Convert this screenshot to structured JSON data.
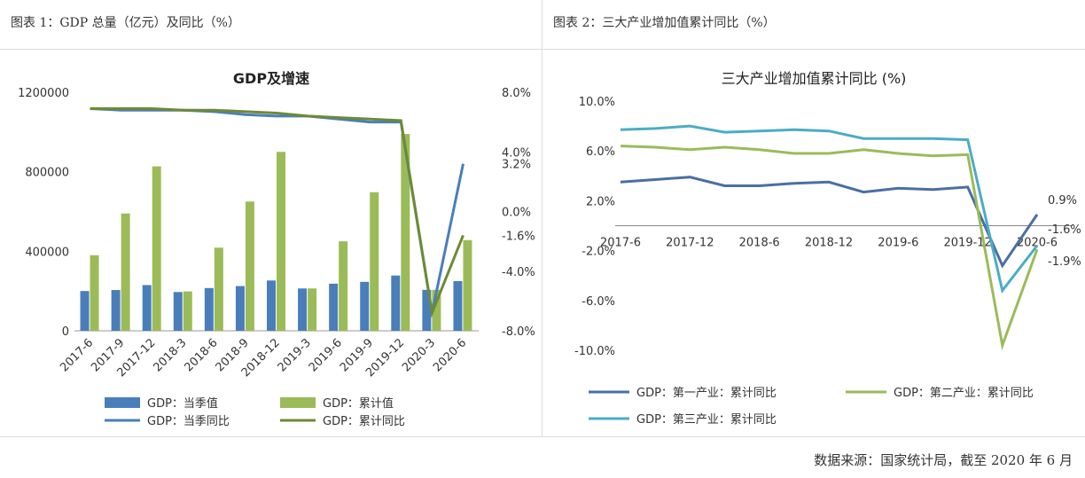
{
  "panels": {
    "left_title": "图表 1：GDP 总量（亿元）及同比（%）",
    "right_title": "图表 2：三大产业增加值累计同比（%）"
  },
  "footer": "数据来源：国家统计局，截至 2020 年 6 月",
  "colors": {
    "bar_quarter": "#4a7ebb",
    "bar_cumulative": "#9bbb59",
    "line_quarter_yoy": "#4a7ebb",
    "line_cumulative_yoy": "#6d8a35",
    "primary": "#4a6fa5",
    "secondary": "#9bbb59",
    "tertiary": "#4bacc6"
  },
  "chart_data": [
    {
      "type": "bar",
      "title": "GDP及增速",
      "categories": [
        "2017-6",
        "2017-9",
        "2017-12",
        "2018-3",
        "2018-6",
        "2018-9",
        "2018-12",
        "2019-3",
        "2019-6",
        "2019-9",
        "2019-12",
        "2020-3",
        "2020-6"
      ],
      "ylim": [
        0,
        1200000
      ],
      "yticks": [
        "1200000",
        "800000",
        "400000",
        "0"
      ],
      "y2lim": [
        -8.0,
        8.0
      ],
      "y2ticks": [
        "8.0%",
        "4.0%",
        "0.0%",
        "-4.0%",
        "-8.0%"
      ],
      "series": [
        {
          "name": "GDP：当季值",
          "kind": "bar",
          "axis": "left",
          "values": [
            200000,
            205000,
            230000,
            195000,
            215000,
            225000,
            253000,
            213000,
            237000,
            246000,
            278000,
            206000,
            250000
          ]
        },
        {
          "name": "GDP：累计值",
          "kind": "bar",
          "axis": "left",
          "values": [
            380000,
            590000,
            827000,
            198000,
            418000,
            650000,
            900000,
            213000,
            450000,
            697000,
            990000,
            206000,
            456000
          ]
        },
        {
          "name": "GDP：当季同比",
          "kind": "line",
          "axis": "right",
          "values": [
            6.9,
            6.8,
            6.8,
            6.8,
            6.7,
            6.5,
            6.4,
            6.4,
            6.2,
            6.0,
            6.0,
            -6.8,
            3.2
          ]
        },
        {
          "name": "GDP：累计同比",
          "kind": "line",
          "axis": "right",
          "values": [
            6.9,
            6.9,
            6.9,
            6.8,
            6.8,
            6.7,
            6.6,
            6.4,
            6.3,
            6.2,
            6.1,
            -6.8,
            -1.6
          ]
        }
      ],
      "annotations": [
        "3.2%",
        "-1.6%"
      ],
      "legend": "bottom"
    },
    {
      "type": "line",
      "title": "三大产业增加值累计同比 (%)",
      "x": [
        "2017-6",
        "2017-9",
        "2017-12",
        "2018-3",
        "2018-6",
        "2018-9",
        "2018-12",
        "2019-3",
        "2019-6",
        "2019-9",
        "2019-12",
        "2020-3",
        "2020-6"
      ],
      "xticks": [
        "2017-6",
        "2017-12",
        "2018-6",
        "2018-12",
        "2019-6",
        "2019-12",
        "2020-6"
      ],
      "ylim": [
        -10.0,
        10.0
      ],
      "yticks": [
        "10.0%",
        "6.0%",
        "2.0%",
        "-2.0%",
        "-6.0%",
        "-10.0%"
      ],
      "series": [
        {
          "name": "GDP：第一产业：累计同比",
          "values": [
            3.5,
            3.7,
            3.9,
            3.2,
            3.2,
            3.4,
            3.5,
            2.7,
            3.0,
            2.9,
            3.1,
            -3.2,
            0.9
          ]
        },
        {
          "name": "GDP：第二产业：累计同比",
          "values": [
            6.4,
            6.3,
            6.1,
            6.3,
            6.1,
            5.8,
            5.8,
            6.1,
            5.8,
            5.6,
            5.7,
            -9.6,
            -1.9
          ]
        },
        {
          "name": "GDP：第三产业：累计同比",
          "values": [
            7.7,
            7.8,
            8.0,
            7.5,
            7.6,
            7.7,
            7.6,
            7.0,
            7.0,
            7.0,
            6.9,
            -5.2,
            -1.6
          ]
        }
      ],
      "annotations": [
        "0.9%",
        "-1.6%",
        "-1.9%"
      ],
      "legend": "bottom"
    }
  ]
}
